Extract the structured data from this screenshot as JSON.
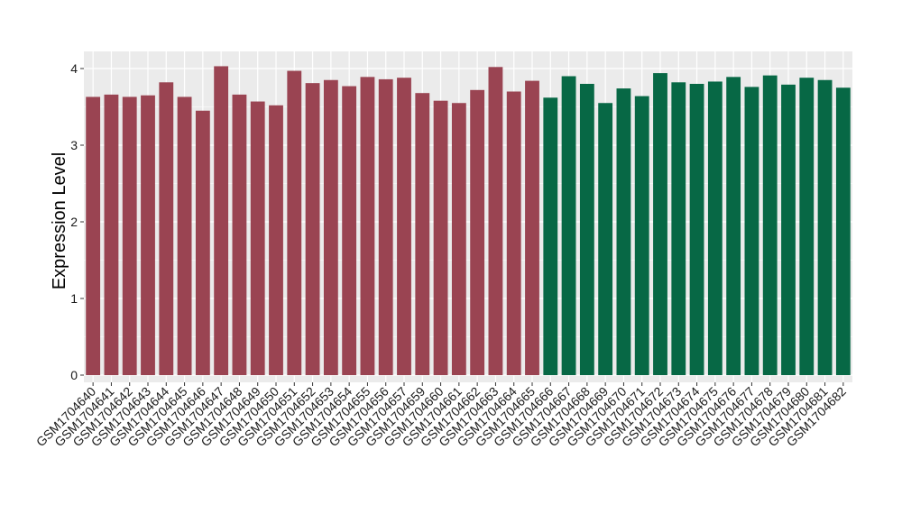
{
  "chart_data": {
    "type": "bar",
    "title": "",
    "xlabel": "",
    "ylabel": "Expression Level",
    "ylim": [
      0,
      4.15
    ],
    "yticks": [
      0,
      1,
      2,
      3,
      4
    ],
    "grid": true,
    "legend": "none",
    "colors": {
      "group1": "#9a4452",
      "group2": "#076845",
      "panel": "#ebebeb",
      "grid": "#ffffff"
    },
    "categories": [
      "GSM1704640",
      "GSM1704641",
      "GSM1704642",
      "GSM1704643",
      "GSM1704644",
      "GSM1704645",
      "GSM1704646",
      "GSM1704647",
      "GSM1704648",
      "GSM1704649",
      "GSM1704650",
      "GSM1704651",
      "GSM1704652",
      "GSM1704653",
      "GSM1704654",
      "GSM1704655",
      "GSM1704656",
      "GSM1704657",
      "GSM1704659",
      "GSM1704660",
      "GSM1704661",
      "GSM1704662",
      "GSM1704663",
      "GSM1704664",
      "GSM1704665",
      "GSM1704666",
      "GSM1704667",
      "GSM1704668",
      "GSM1704669",
      "GSM1704670",
      "GSM1704671",
      "GSM1704672",
      "GSM1704673",
      "GSM1704674",
      "GSM1704675",
      "GSM1704676",
      "GSM1704677",
      "GSM1704678",
      "GSM1704679",
      "GSM1704680",
      "GSM1704681",
      "GSM1704682"
    ],
    "values": [
      3.63,
      3.66,
      3.63,
      3.65,
      3.82,
      3.63,
      3.45,
      4.03,
      3.66,
      3.57,
      3.52,
      3.97,
      3.81,
      3.85,
      3.77,
      3.89,
      3.86,
      3.88,
      3.68,
      3.58,
      3.55,
      3.72,
      4.02,
      3.7,
      3.84,
      3.62,
      3.9,
      3.8,
      3.55,
      3.74,
      3.64,
      3.94,
      3.82,
      3.8,
      3.83,
      3.89,
      3.76,
      3.91,
      3.79,
      3.88,
      3.85,
      3.75
    ],
    "groups": [
      "group1",
      "group1",
      "group1",
      "group1",
      "group1",
      "group1",
      "group1",
      "group1",
      "group1",
      "group1",
      "group1",
      "group1",
      "group1",
      "group1",
      "group1",
      "group1",
      "group1",
      "group1",
      "group1",
      "group1",
      "group1",
      "group1",
      "group1",
      "group1",
      "group1",
      "group2",
      "group2",
      "group2",
      "group2",
      "group2",
      "group2",
      "group2",
      "group2",
      "group2",
      "group2",
      "group2",
      "group2",
      "group2",
      "group2",
      "group2",
      "group2",
      "group2"
    ]
  }
}
